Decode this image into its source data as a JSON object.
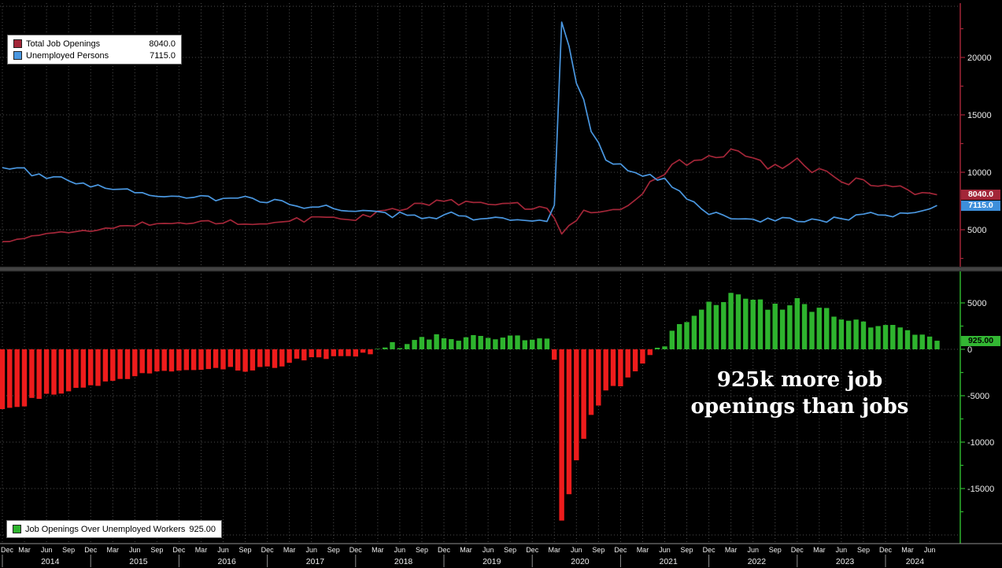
{
  "annotation": {
    "line1": "925k more job",
    "line2": "openings than jobs"
  },
  "legend_top": {
    "items": [
      {
        "label": "Total Job Openings",
        "value": "8040.0",
        "color": "#a32638"
      },
      {
        "label": "Unemployed Persons",
        "value": "7115.0",
        "color": "#4a97e0"
      }
    ]
  },
  "legend_bottom": {
    "items": [
      {
        "label": "Job Openings Over Unemployed Workers",
        "value": "925.00",
        "color": "#2eb42e"
      }
    ]
  },
  "price_badges": [
    {
      "text": "8040.0",
      "bg": "#a32638",
      "fg": "#ffffff"
    },
    {
      "text": "7115.0",
      "bg": "#3d8fdb",
      "fg": "#ffffff"
    },
    {
      "text": "925.00",
      "bg": "#33b733",
      "fg": "#000000"
    }
  ],
  "chart_data": [
    {
      "type": "line",
      "panel": "top",
      "tick_every_points": 3,
      "x_tick_labels": [
        "Dec",
        "Mar",
        "Jun",
        "Sep",
        "Dec",
        "Mar",
        "Jun",
        "Sep",
        "Dec",
        "Mar",
        "Jun",
        "Sep",
        "Dec",
        "Mar",
        "Jun",
        "Sep",
        "Dec",
        "Mar",
        "Jun",
        "Sep",
        "Dec",
        "Mar",
        "Jun",
        "Sep",
        "Dec",
        "Mar",
        "Jun",
        "Sep",
        "Dec",
        "Mar",
        "Jun",
        "Sep",
        "Dec",
        "Mar",
        "Jun",
        "Sep",
        "Dec",
        "Mar",
        "Jun",
        "Sep",
        "Dec",
        "Mar",
        "Jun"
      ],
      "year_labels": [
        "2014",
        "2015",
        "2016",
        "2017",
        "2018",
        "2019",
        "2020",
        "2021",
        "2022",
        "2023",
        "2024"
      ],
      "yticks": [
        20000,
        15000,
        10000,
        5000
      ],
      "ylim": [
        3000,
        23500
      ],
      "grid": "dotted",
      "legend_position": "top-left",
      "series": [
        {
          "name": "Total Job Openings",
          "color": "#a32638",
          "last_value": 8040.0,
          "values": [
            3960,
            3974,
            4172,
            4232,
            4464,
            4517,
            4671,
            4726,
            4825,
            4735,
            4837,
            4940,
            4847,
            4965,
            5144,
            5109,
            5334,
            5354,
            5323,
            5668,
            5391,
            5525,
            5550,
            5535,
            5607,
            5512,
            5576,
            5757,
            5789,
            5514,
            5570,
            5853,
            5469,
            5486,
            5458,
            5505,
            5505,
            5628,
            5682,
            5743,
            6044,
            5666,
            6116,
            6116,
            6090,
            6090,
            5930,
            5879,
            5811,
            6312,
            6110,
            6633,
            6691,
            6840,
            6662,
            6822,
            7293,
            7293,
            7131,
            7574,
            7479,
            7625,
            7142,
            7480,
            7372,
            7384,
            7210,
            7170,
            7288,
            7301,
            7361,
            6787,
            6787,
            7012,
            6866,
            6011,
            4632,
            5371,
            5790,
            6697,
            6478,
            6522,
            6632,
            6762,
            6752,
            7099,
            7597,
            8123,
            9193,
            9483,
            9800,
            10700,
            11098,
            10602,
            11033,
            11075,
            11448,
            11283,
            11344,
            12027,
            11855,
            11400,
            11254,
            11042,
            10280,
            10687,
            10334,
            10746,
            11234,
            10563,
            9974,
            10320,
            10103,
            9616,
            9165,
            8920,
            9497,
            9350,
            8852,
            8790,
            8889,
            8748,
            8813,
            8488,
            8059,
            8230,
            8184,
            8040
          ]
        },
        {
          "name": "Unemployed Persons",
          "color": "#4a97e0",
          "last_value": 7115.0,
          "values": [
            10404,
            10280,
            10387,
            10384,
            9702,
            9859,
            9460,
            9608,
            9599,
            9262,
            8990,
            9071,
            8717,
            8903,
            8610,
            8504,
            8526,
            8555,
            8222,
            8235,
            7991,
            7907,
            7870,
            7924,
            7907,
            7753,
            7815,
            7966,
            7920,
            7522,
            7727,
            7751,
            7754,
            7904,
            7740,
            7409,
            7354,
            7635,
            7528,
            7202,
            7056,
            6861,
            6972,
            6982,
            7136,
            6837,
            6669,
            6617,
            6593,
            6680,
            6642,
            6585,
            6496,
            6065,
            6534,
            6258,
            6282,
            5964,
            6076,
            5957,
            6294,
            6535,
            6215,
            6184,
            5850,
            5946,
            5985,
            6092,
            6029,
            5822,
            5872,
            5811,
            5753,
            5838,
            5717,
            7140,
            23078,
            20985,
            17750,
            16338,
            13550,
            12580,
            11061,
            10710,
            10736,
            10130,
            9972,
            9658,
            9812,
            9316,
            9484,
            8702,
            8384,
            7674,
            7419,
            6802,
            6319,
            6513,
            6263,
            5952,
            5941,
            5950,
            5912,
            5670,
            6014,
            5769,
            6059,
            6011,
            5722,
            5694,
            5936,
            5839,
            5657,
            6097,
            5957,
            5841,
            6295,
            6358,
            6506,
            6291,
            6268,
            6124,
            6458,
            6429,
            6492,
            6649,
            6811,
            7115
          ]
        }
      ]
    },
    {
      "type": "bar",
      "panel": "bottom",
      "yticks": [
        5000,
        0,
        -5000,
        -10000,
        -15000
      ],
      "ylim": [
        -19000,
        6500
      ],
      "grid": "dotted",
      "legend_position": "bottom-left",
      "annotation": "925k more job openings than jobs",
      "series": [
        {
          "name": "Job Openings Over Unemployed Workers",
          "last_value": 925.0,
          "positive_color": "#2eb42e",
          "negative_color": "#ee1c1c",
          "values": [
            -6444,
            -6306,
            -6215,
            -6152,
            -5238,
            -5342,
            -4789,
            -4882,
            -4774,
            -4527,
            -4153,
            -4131,
            -3870,
            -3938,
            -3466,
            -3395,
            -3192,
            -3201,
            -2899,
            -2567,
            -2600,
            -2382,
            -2320,
            -2389,
            -2300,
            -2241,
            -2239,
            -2209,
            -2131,
            -2008,
            -2157,
            -1898,
            -2285,
            -2418,
            -2282,
            -1904,
            -1849,
            -2007,
            -1846,
            -1459,
            -1012,
            -1195,
            -856,
            -866,
            -1046,
            -747,
            -739,
            -738,
            -782,
            -368,
            -532,
            48,
            195,
            775,
            128,
            564,
            1011,
            1329,
            1055,
            1617,
            1185,
            1090,
            927,
            1296,
            1522,
            1438,
            1225,
            1078,
            1259,
            1479,
            1489,
            976,
            1034,
            1174,
            1149,
            -1129,
            -18446,
            -15614,
            -11960,
            -9641,
            -7072,
            -6058,
            -4429,
            -3948,
            -3984,
            -3031,
            -2375,
            -1535,
            -619,
            167,
            316,
            1998,
            2714,
            2928,
            3614,
            4273,
            5129,
            4770,
            5081,
            6075,
            5914,
            5450,
            5342,
            5372,
            4266,
            4918,
            4275,
            4735,
            5512,
            4869,
            4038,
            4481,
            4446,
            3519,
            3208,
            3079,
            3202,
            2992,
            2346,
            2499,
            2621,
            2624,
            2355,
            2059,
            1567,
            1581,
            1373,
            925
          ]
        }
      ]
    }
  ]
}
